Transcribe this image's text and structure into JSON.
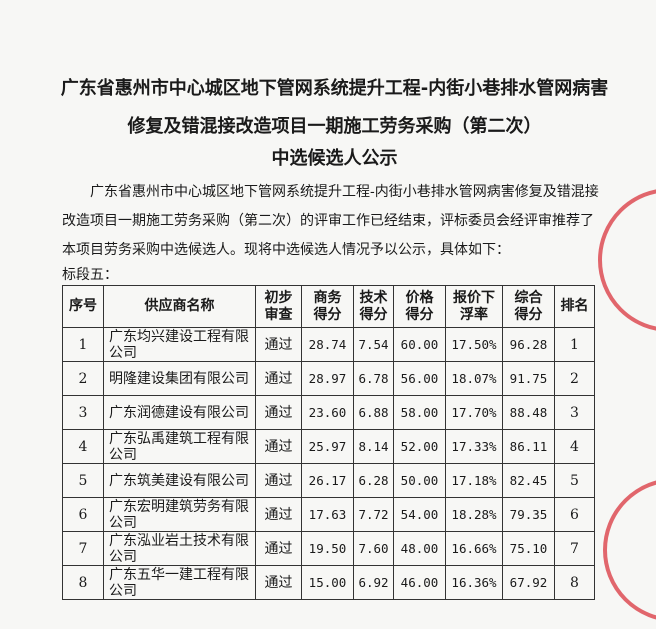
{
  "title_lines": [
    "广东省惠州市中心城区地下管网系统提升工程-内街小巷排水管网病害",
    "修复及错混接改造项目一期施工劳务采购（第二次）",
    "中选候选人公示"
  ],
  "paragraph": "广东省惠州市中心城区地下管网系统提升工程-内街小巷排水管网病害修复及错混接改造项目一期施工劳务采购（第二次）的评审工作已经结束，评标委员会经评审推荐了本项目劳务采购中选候选人。现将中选候选人情况予以公示，具体如下：",
  "section_label": "标段五：",
  "table": {
    "headers": [
      [
        "序号"
      ],
      [
        "供应商名称"
      ],
      [
        "初步",
        "审查"
      ],
      [
        "商务",
        "得分"
      ],
      [
        "技术",
        "得分"
      ],
      [
        "价格",
        "得分"
      ],
      [
        "报价下",
        "浮率"
      ],
      [
        "综合",
        "得分"
      ],
      [
        "排名"
      ]
    ],
    "rows": [
      [
        "1",
        "广东均兴建设工程有限公司",
        "通过",
        "28.74",
        "7.54",
        "60.00",
        "17.50%",
        "96.28",
        "1"
      ],
      [
        "2",
        "明隆建设集团有限公司",
        "通过",
        "28.97",
        "6.78",
        "56.00",
        "18.07%",
        "91.75",
        "2"
      ],
      [
        "3",
        "广东润德建设有限公司",
        "通过",
        "23.60",
        "6.88",
        "58.00",
        "17.70%",
        "88.48",
        "3"
      ],
      [
        "4",
        "广东弘禹建筑工程有限公司",
        "通过",
        "25.97",
        "8.14",
        "52.00",
        "17.33%",
        "86.11",
        "4"
      ],
      [
        "5",
        "广东筑美建设有限公司",
        "通过",
        "26.17",
        "6.28",
        "50.00",
        "17.18%",
        "82.45",
        "5"
      ],
      [
        "6",
        "广东宏明建筑劳务有限公司",
        "通过",
        "17.63",
        "7.72",
        "54.00",
        "18.28%",
        "79.35",
        "6"
      ],
      [
        "7",
        "广东泓业岩土技术有限公司",
        "通过",
        "19.50",
        "7.60",
        "48.00",
        "16.66%",
        "75.10",
        "7"
      ],
      [
        "8",
        "广东五华一建工程有限公司",
        "通过",
        "15.00",
        "6.92",
        "46.00",
        "16.36%",
        "67.92",
        "8"
      ]
    ]
  },
  "colors": {
    "seal": "#d9363e"
  }
}
